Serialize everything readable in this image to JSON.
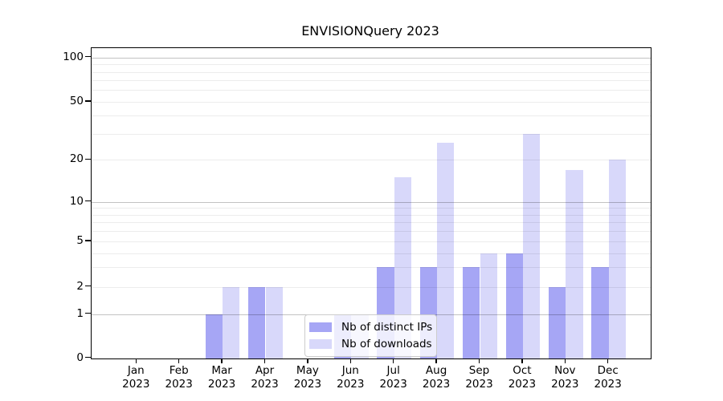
{
  "title": "ENVISIONQuery 2023",
  "colors": {
    "ips_bar": "#a6a6f5",
    "downloads_bar": "#d8d8fa"
  },
  "legend": {
    "items": [
      {
        "label": "Nb of distinct IPs",
        "color_key": "ips_bar"
      },
      {
        "label": "Nb of downloads",
        "color_key": "downloads_bar"
      }
    ]
  },
  "chart_data": {
    "type": "bar",
    "title": "ENVISIONQuery 2023",
    "categories": [
      "Jan 2023",
      "Feb 2023",
      "Mar 2023",
      "Apr 2023",
      "May 2023",
      "Jun 2023",
      "Jul 2023",
      "Aug 2023",
      "Sep 2023",
      "Oct 2023",
      "Nov 2023",
      "Dec 2023"
    ],
    "month_line1": [
      "Jan",
      "Feb",
      "Mar",
      "Apr",
      "May",
      "Jun",
      "Jul",
      "Aug",
      "Sep",
      "Oct",
      "Nov",
      "Dec"
    ],
    "month_line2": [
      "2023",
      "2023",
      "2023",
      "2023",
      "2023",
      "2023",
      "2023",
      "2023",
      "2023",
      "2023",
      "2023",
      "2023"
    ],
    "series": [
      {
        "name": "Nb of distinct IPs",
        "values": [
          0,
          0,
          1,
          2,
          0,
          1,
          3,
          3,
          3,
          4,
          2,
          3
        ]
      },
      {
        "name": "Nb of downloads",
        "values": [
          0,
          0,
          2,
          2,
          0,
          1,
          15,
          26,
          4,
          30,
          17,
          20
        ]
      }
    ],
    "xlabel": "",
    "ylabel": "",
    "yscale": "symlog",
    "y_tick_values": [
      100,
      50,
      20,
      10,
      5,
      2,
      1,
      0
    ],
    "y_tick_labels": [
      "100",
      "50",
      "20",
      "10",
      "5",
      "2",
      "1",
      "0"
    ],
    "ylim": [
      0,
      120
    ],
    "grid": true,
    "legend_position": "lower center"
  }
}
